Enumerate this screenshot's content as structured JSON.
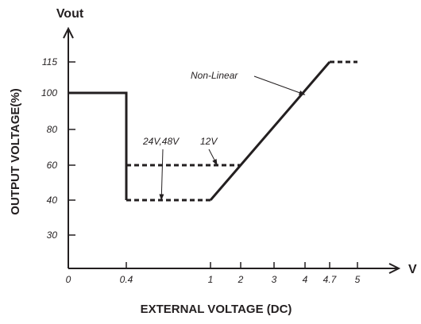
{
  "chart_data": {
    "type": "line",
    "y_axis_name": "Vout",
    "x_axis_name": "V",
    "ylabel": "OUTPUT  VOLTAGE(%)",
    "xlabel": "EXTERNAL VOLTAGE (DC)",
    "x_ticks": [
      "0",
      "0.4",
      "1",
      "2",
      "3",
      "4",
      "4.7",
      "5"
    ],
    "y_ticks": [
      "30",
      "40",
      "60",
      "80",
      "100",
      "115"
    ],
    "series": [
      {
        "style": "solid",
        "points": [
          [
            0,
            100
          ],
          [
            0.4,
            100
          ],
          [
            0.4,
            40
          ]
        ]
      },
      {
        "style": "dashed",
        "points": [
          [
            0.4,
            40
          ],
          [
            1,
            40
          ]
        ]
      },
      {
        "style": "solid",
        "points": [
          [
            1,
            40
          ],
          [
            4.7,
            115
          ]
        ]
      },
      {
        "style": "dashed",
        "points": [
          [
            4.7,
            115
          ],
          [
            5,
            115
          ]
        ]
      },
      {
        "style": "dashed",
        "points": [
          [
            0.4,
            60
          ],
          [
            2,
            60
          ]
        ]
      }
    ],
    "annotations": [
      {
        "text": "Non-Linear",
        "arrow_to": [
          4.0,
          99
        ]
      },
      {
        "text": "24V,48V",
        "arrow_to": [
          0.65,
          40
        ]
      },
      {
        "text": "12V",
        "arrow_to": [
          1.22,
          60
        ]
      }
    ],
    "grid": false,
    "legend": "none",
    "line_color": "#231f20"
  }
}
